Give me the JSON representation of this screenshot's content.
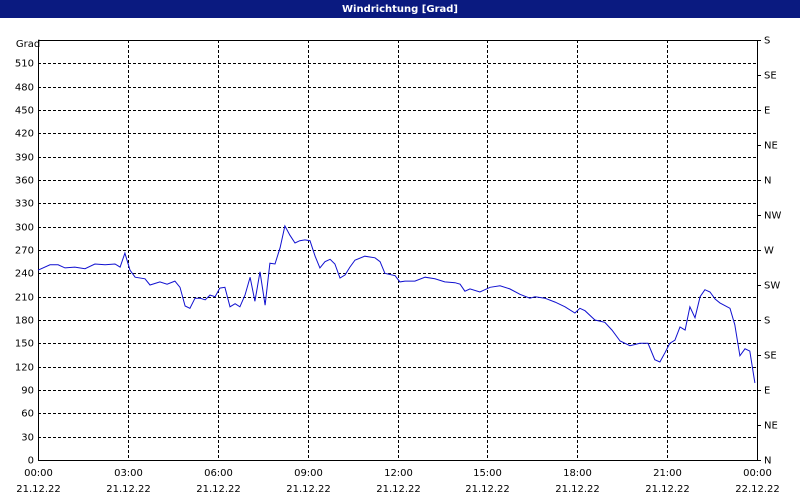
{
  "chart_data": {
    "type": "line",
    "title": "Windrichtung [Grad]",
    "ylabel": "Grad",
    "ylim": [
      0,
      540
    ],
    "yticks": [
      0,
      30,
      60,
      90,
      120,
      150,
      180,
      210,
      240,
      270,
      300,
      330,
      360,
      390,
      420,
      450,
      480,
      510
    ],
    "y2lim": [
      0,
      540
    ],
    "y2ticks": [
      {
        "value": 0,
        "label": "N"
      },
      {
        "value": 45,
        "label": "NE"
      },
      {
        "value": 90,
        "label": "E"
      },
      {
        "value": 135,
        "label": "SE"
      },
      {
        "value": 180,
        "label": "S"
      },
      {
        "value": 225,
        "label": "SW"
      },
      {
        "value": 270,
        "label": "W"
      },
      {
        "value": 315,
        "label": "NW"
      },
      {
        "value": 360,
        "label": "N"
      },
      {
        "value": 405,
        "label": "NE"
      },
      {
        "value": 450,
        "label": "E"
      },
      {
        "value": 495,
        "label": "SE"
      },
      {
        "value": 540,
        "label": "S"
      }
    ],
    "xlim": [
      0,
      24
    ],
    "xticks": [
      {
        "value": 0,
        "label": "00:00",
        "date": "21.12.22"
      },
      {
        "value": 3,
        "label": "03:00",
        "date": "21.12.22"
      },
      {
        "value": 6,
        "label": "06:00",
        "date": "21.12.22"
      },
      {
        "value": 9,
        "label": "09:00",
        "date": "21.12.22"
      },
      {
        "value": 12,
        "label": "12:00",
        "date": "21.12.22"
      },
      {
        "value": 15,
        "label": "15:00",
        "date": "21.12.22"
      },
      {
        "value": 18,
        "label": "18:00",
        "date": "21.12.22"
      },
      {
        "value": 21,
        "label": "21:00",
        "date": "21.12.22"
      },
      {
        "value": 24,
        "label": "00:00",
        "date": "22.12.22"
      }
    ],
    "grid": true,
    "color": "#1010d0",
    "x": [
      0,
      0.4,
      0.67,
      0.9,
      1.23,
      1.57,
      1.9,
      2.24,
      2.57,
      2.74,
      2.9,
      3.07,
      3.24,
      3.57,
      3.74,
      4.07,
      4.31,
      4.57,
      4.74,
      4.91,
      5.07,
      5.24,
      5.41,
      5.58,
      5.74,
      5.91,
      6.07,
      6.24,
      6.41,
      6.58,
      6.74,
      6.91,
      7.08,
      7.24,
      7.41,
      7.58,
      7.74,
      7.91,
      8.08,
      8.24,
      8.41,
      8.58,
      8.74,
      8.91,
      9.08,
      9.25,
      9.41,
      9.58,
      9.75,
      9.91,
      10.08,
      10.25,
      10.41,
      10.58,
      10.91,
      11.25,
      11.42,
      11.58,
      11.92,
      12.08,
      12.25,
      12.58,
      12.92,
      13.25,
      13.58,
      13.92,
      14.09,
      14.25,
      14.42,
      14.75,
      15.09,
      15.42,
      15.75,
      16.09,
      16.42,
      16.59,
      16.92,
      17.26,
      17.59,
      17.92,
      18.09,
      18.26,
      18.59,
      18.92,
      19.16,
      19.43,
      19.76,
      20.09,
      20.36,
      20.59,
      20.76,
      20.93,
      21.09,
      21.26,
      21.43,
      21.6,
      21.76,
      21.93,
      22.1,
      22.26,
      22.43,
      22.6,
      22.76,
      23.1,
      23.26,
      23.43,
      23.6,
      23.76,
      23.93
    ],
    "values": [
      244,
      251,
      251,
      247,
      248,
      246,
      252,
      251,
      252,
      248,
      266,
      244,
      235,
      233,
      225,
      229,
      226,
      230,
      222,
      198,
      195,
      208,
      208,
      206,
      212,
      210,
      221,
      222,
      197,
      201,
      197,
      212,
      235,
      204,
      242,
      199,
      253,
      252,
      273,
      301,
      289,
      279,
      282,
      283,
      282,
      262,
      247,
      255,
      258,
      252,
      234,
      238,
      248,
      257,
      262,
      260,
      255,
      240,
      237,
      229,
      230,
      230,
      235,
      233,
      229,
      228,
      226,
      217,
      220,
      216,
      222,
      224,
      220,
      213,
      208,
      210,
      208,
      203,
      197,
      189,
      195,
      192,
      180,
      177,
      167,
      153,
      147,
      150,
      150,
      129,
      126,
      138,
      150,
      154,
      171,
      167,
      197,
      183,
      210,
      219,
      216,
      207,
      202,
      195,
      174,
      134,
      143,
      140,
      99
    ]
  }
}
